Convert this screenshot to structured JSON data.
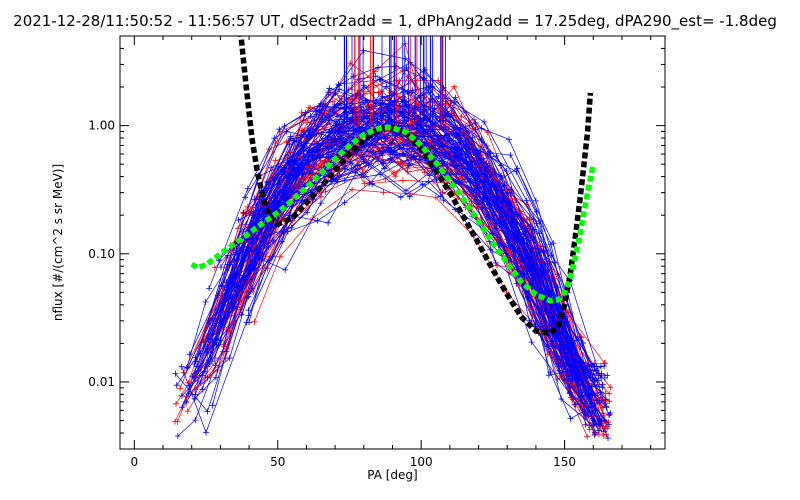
{
  "chart_data": {
    "type": "line",
    "title": "2021-12-28/11:50:52 - 11:56:57 UT, dSectr2add = 1, dPhAng2add = 17.25deg, dPA290_est=  -1.8deg",
    "xlabel": "PA [deg]",
    "ylabel": "nflux [#/(cm^2 s sr MeV)]",
    "xlim": [
      -5,
      185
    ],
    "ylim": [
      0.003,
      5
    ],
    "yscale": "log",
    "x_ticks": [
      0,
      50,
      100,
      150
    ],
    "x_tick_labels": [
      "0",
      "50",
      "100",
      "150"
    ],
    "y_ticks": [
      0.01,
      0.1,
      1.0
    ],
    "y_tick_labels": [
      "0.01",
      "0.10",
      "1.00"
    ],
    "colors": {
      "red": "#ff0000",
      "blue": "#0000ff",
      "black": "#000000",
      "green": "#00ff00"
    },
    "series": [
      {
        "color": "#000000",
        "style": "thick-dashed",
        "x": [
          37,
          39,
          41,
          43,
          45,
          47,
          50,
          55,
          60,
          65,
          70,
          75,
          80,
          85,
          88,
          90,
          92,
          95,
          100,
          105,
          110,
          115,
          120,
          125,
          130,
          135,
          140,
          145,
          148,
          150,
          152,
          154,
          156,
          158,
          159
        ],
        "y": [
          5.5,
          2.0,
          0.8,
          0.42,
          0.27,
          0.2,
          0.17,
          0.19,
          0.25,
          0.33,
          0.45,
          0.6,
          0.78,
          0.93,
          0.97,
          0.96,
          0.93,
          0.85,
          0.65,
          0.45,
          0.3,
          0.19,
          0.12,
          0.075,
          0.048,
          0.032,
          0.025,
          0.024,
          0.028,
          0.04,
          0.07,
          0.15,
          0.35,
          0.9,
          1.8
        ]
      },
      {
        "color": "#00ff00",
        "style": "thick-dashed",
        "x": [
          20,
          22,
          25,
          30,
          35,
          40,
          45,
          50,
          55,
          60,
          65,
          70,
          75,
          80,
          85,
          88,
          90,
          95,
          100,
          105,
          110,
          115,
          120,
          125,
          130,
          135,
          140,
          145,
          148,
          150,
          152,
          154,
          156,
          158,
          160
        ],
        "y": [
          0.083,
          0.078,
          0.082,
          0.1,
          0.12,
          0.145,
          0.175,
          0.21,
          0.26,
          0.33,
          0.42,
          0.55,
          0.7,
          0.85,
          0.95,
          0.97,
          0.96,
          0.88,
          0.7,
          0.52,
          0.37,
          0.26,
          0.18,
          0.12,
          0.085,
          0.06,
          0.048,
          0.043,
          0.044,
          0.05,
          0.065,
          0.1,
          0.17,
          0.3,
          0.5
        ]
      }
    ]
  }
}
